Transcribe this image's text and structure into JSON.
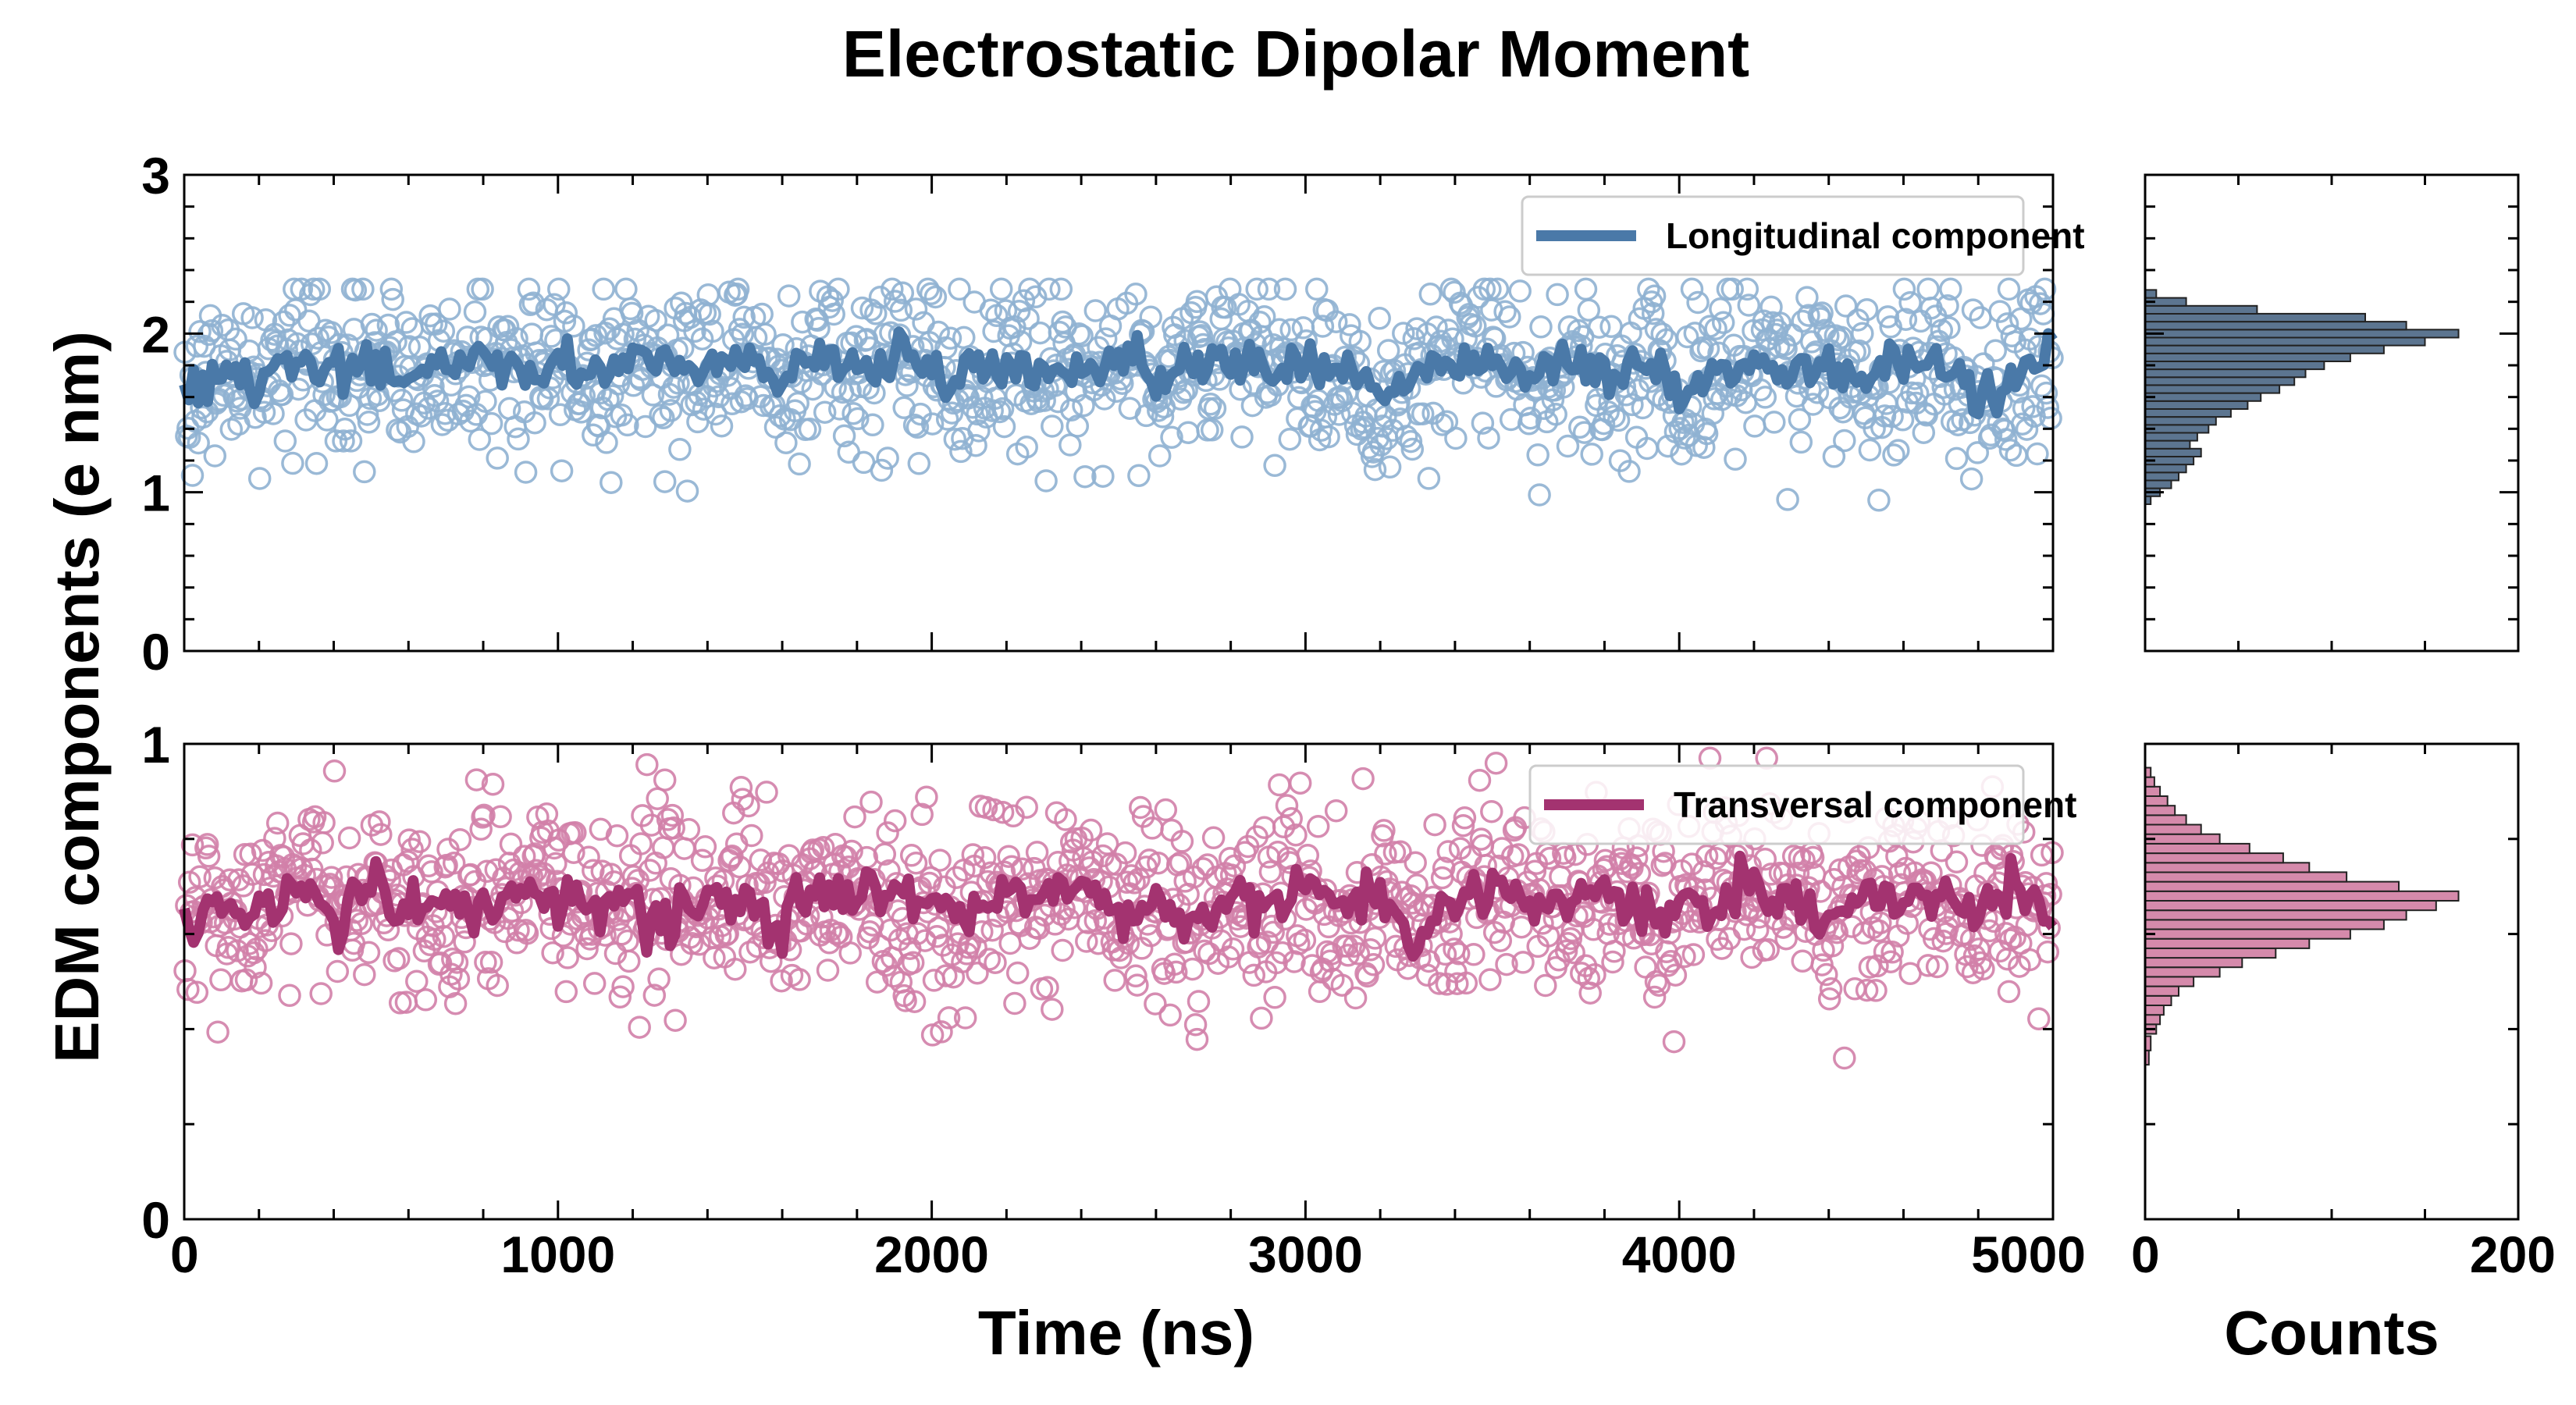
{
  "figure": {
    "title": "Electrostatic Dipolar Moment",
    "ylabel": "EDM components (e nm)",
    "xlabel": "Time (ns)",
    "hist_xlabel": "Counts"
  },
  "colors": {
    "longitudinal": "#4a79a8",
    "longitudinal_points": "#8fb1d1",
    "transversal": "#a33370",
    "transversal_points": "#d17fa9",
    "hist_longitudinal_fill": "#5c7590",
    "hist_transversal_fill": "#d58aab"
  },
  "chart_data": [
    {
      "type": "scatter",
      "panel": "top",
      "title": "",
      "xlabel": "",
      "ylabel": "",
      "xlim": [
        0,
        5000
      ],
      "ylim": [
        0,
        3
      ],
      "yticks": [
        0,
        1,
        2,
        3
      ],
      "xticks": [
        0,
        1000,
        2000,
        3000,
        4000,
        5000
      ],
      "x_ticklabels_visible": false,
      "legend": "top-right",
      "series": [
        {
          "name": "Longitudinal component",
          "kind": "scatter",
          "points_count": 1250,
          "mean": 1.75,
          "std": 0.28,
          "min": 0.95,
          "max": 2.28
        },
        {
          "name": "Longitudinal component",
          "kind": "running-average-line",
          "x": [
            0,
            100,
            200,
            300,
            400,
            500,
            600,
            700,
            800,
            900,
            1000,
            1100,
            1200,
            1300,
            1400,
            1500,
            1600,
            1700,
            1800,
            1900,
            2000,
            2100,
            2200,
            2300,
            2400,
            2500,
            2600,
            2700,
            2800,
            2900,
            3000,
            3100,
            3200,
            3300,
            3400,
            3500,
            3600,
            3700,
            3800,
            3900,
            4000,
            4100,
            4200,
            4300,
            4400,
            4500,
            4600,
            4700,
            4800,
            4900,
            5000
          ],
          "y": [
            1.62,
            1.75,
            1.68,
            1.88,
            1.72,
            1.8,
            1.7,
            1.78,
            1.85,
            1.72,
            1.82,
            1.76,
            1.86,
            1.78,
            1.82,
            1.9,
            1.72,
            1.84,
            1.78,
            1.86,
            1.8,
            1.72,
            1.82,
            1.74,
            1.8,
            1.84,
            1.74,
            1.82,
            1.88,
            1.76,
            1.82,
            1.78,
            1.55,
            1.8,
            1.82,
            1.86,
            1.72,
            1.8,
            1.74,
            1.82,
            1.62,
            1.78,
            1.84,
            1.76,
            1.82,
            1.68,
            1.8,
            1.84,
            1.6,
            1.72,
            1.85
          ]
        }
      ]
    },
    {
      "type": "scatter",
      "panel": "bottom",
      "title": "",
      "xlabel": "Time (ns)",
      "ylabel": "",
      "xlim": [
        0,
        5000
      ],
      "ylim": [
        0,
        1
      ],
      "yticks": [
        0,
        1
      ],
      "xticks": [
        0,
        1000,
        2000,
        3000,
        4000,
        5000
      ],
      "legend": "top-right",
      "series": [
        {
          "name": "Transversal component",
          "kind": "scatter",
          "points_count": 1250,
          "mean": 0.66,
          "std": 0.1,
          "min": 0.33,
          "max": 0.97
        },
        {
          "name": "Transversal component",
          "kind": "running-average-line",
          "x": [
            0,
            100,
            200,
            300,
            400,
            500,
            600,
            700,
            800,
            900,
            1000,
            1100,
            1200,
            1300,
            1400,
            1500,
            1600,
            1700,
            1800,
            1900,
            2000,
            2100,
            2200,
            2300,
            2400,
            2500,
            2600,
            2700,
            2800,
            2900,
            3000,
            3100,
            3200,
            3300,
            3400,
            3500,
            3600,
            3700,
            3800,
            3900,
            4000,
            4100,
            4200,
            4300,
            4400,
            4500,
            4600,
            4700,
            4800,
            4900,
            5000
          ],
          "y": [
            0.62,
            0.68,
            0.64,
            0.72,
            0.66,
            0.7,
            0.64,
            0.68,
            0.66,
            0.7,
            0.67,
            0.65,
            0.68,
            0.64,
            0.69,
            0.67,
            0.62,
            0.68,
            0.65,
            0.7,
            0.66,
            0.63,
            0.68,
            0.66,
            0.7,
            0.64,
            0.67,
            0.62,
            0.68,
            0.66,
            0.7,
            0.65,
            0.68,
            0.6,
            0.67,
            0.7,
            0.68,
            0.66,
            0.69,
            0.65,
            0.68,
            0.66,
            0.7,
            0.67,
            0.62,
            0.68,
            0.66,
            0.69,
            0.64,
            0.7,
            0.62
          ]
        }
      ]
    },
    {
      "type": "bar",
      "orientation": "horizontal",
      "panel": "top-histogram",
      "title": "",
      "xlabel": "",
      "ylabel": "",
      "xlim": [
        0,
        200
      ],
      "ylim": [
        0,
        3
      ],
      "xticks": [
        0,
        200
      ],
      "x_ticklabels_visible": false,
      "bin_centers": [
        0.95,
        1.0,
        1.05,
        1.1,
        1.15,
        1.2,
        1.25,
        1.3,
        1.35,
        1.4,
        1.45,
        1.5,
        1.55,
        1.6,
        1.65,
        1.7,
        1.75,
        1.8,
        1.85,
        1.9,
        1.95,
        2.0,
        2.05,
        2.1,
        2.15,
        2.2,
        2.25
      ],
      "counts": [
        3,
        8,
        14,
        18,
        22,
        26,
        30,
        24,
        28,
        34,
        38,
        46,
        55,
        62,
        72,
        80,
        86,
        96,
        110,
        128,
        150,
        168,
        140,
        118,
        60,
        22,
        6
      ]
    },
    {
      "type": "bar",
      "orientation": "horizontal",
      "panel": "bottom-histogram",
      "title": "",
      "xlabel": "Counts",
      "ylabel": "",
      "xlim": [
        0,
        200
      ],
      "ylim": [
        0,
        1
      ],
      "xticks": [
        0,
        200
      ],
      "bin_centers": [
        0.34,
        0.37,
        0.4,
        0.42,
        0.44,
        0.46,
        0.48,
        0.5,
        0.52,
        0.54,
        0.56,
        0.58,
        0.6,
        0.62,
        0.64,
        0.66,
        0.68,
        0.7,
        0.72,
        0.74,
        0.76,
        0.78,
        0.8,
        0.82,
        0.84,
        0.86,
        0.88,
        0.9,
        0.92,
        0.94
      ],
      "counts": [
        2,
        3,
        6,
        8,
        10,
        14,
        18,
        26,
        40,
        52,
        70,
        88,
        110,
        128,
        140,
        156,
        168,
        136,
        108,
        88,
        74,
        56,
        40,
        30,
        22,
        16,
        12,
        8,
        5,
        3
      ]
    }
  ]
}
